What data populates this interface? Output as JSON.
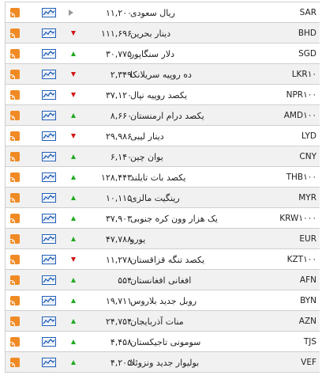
{
  "rates": [
    {
      "code": "SAR",
      "name": "ریال سعودی",
      "value": "۱۱,۲۰۰",
      "trend": "flat"
    },
    {
      "code": "BHD",
      "name": "دینار بحرین",
      "value": "۱۱۱,۶۹۶",
      "trend": "down"
    },
    {
      "code": "SGD",
      "name": "دلار سنگاپور",
      "value": "۳۰,۷۷۵",
      "trend": "up"
    },
    {
      "code": "LKR۱۰",
      "name": "ده روپیه سریلانکا",
      "value": "۲,۳۴۹",
      "trend": "down"
    },
    {
      "code": "NPR۱۰۰",
      "name": "یکصد روپیه نپال",
      "value": "۳۷,۱۲۰",
      "trend": "down"
    },
    {
      "code": "AMD۱۰۰",
      "name": "یکصد درام ارمنستان",
      "value": "۸,۶۶۰",
      "trend": "up"
    },
    {
      "code": "LYD",
      "name": "دینار لیبی",
      "value": "۲۹,۹۸۶",
      "trend": "down"
    },
    {
      "code": "CNY",
      "name": "یوان چین",
      "value": "۶,۱۴۰",
      "trend": "up"
    },
    {
      "code": "THB۱۰۰",
      "name": "یکصد بات تایلند",
      "value": "۱۲۸,۴۴۳",
      "trend": "up"
    },
    {
      "code": "MYR",
      "name": "رینگیت مالزی",
      "value": "۱۰,۱۱۵",
      "trend": "up"
    },
    {
      "code": "KRW۱۰۰۰",
      "name": "یک هزار وون کره جنوبی",
      "value": "۳۷,۹۰۳",
      "trend": "up"
    },
    {
      "code": "EUR",
      "name": "یورو",
      "value": "۴۷,۷۸۸",
      "trend": "up"
    },
    {
      "code": "KZT۱۰۰",
      "name": "یکصد تنگه قزاقستان",
      "value": "۱۱,۲۷۸",
      "trend": "down"
    },
    {
      "code": "AFN",
      "name": "افغانی افغانستان",
      "value": "۵۵۴",
      "trend": "up"
    },
    {
      "code": "BYN",
      "name": "روبل جدید بلاروس",
      "value": "۱۹,۷۱۱",
      "trend": "up"
    },
    {
      "code": "AZN",
      "name": "منات آذربایجان",
      "value": "۲۴,۷۵۴",
      "trend": "up"
    },
    {
      "code": "TJS",
      "name": "سومونی تاجیکستان",
      "value": "۴,۴۵۸",
      "trend": "up"
    },
    {
      "code": "VEF",
      "name": "بولیوار جدید ونزوئلا",
      "value": "۴,۲۰۵",
      "trend": "up"
    }
  ],
  "colors": {
    "up": "#1faa1f",
    "down": "#d01515",
    "flat": "#9a9a9a",
    "rss": "#f08a24",
    "chart": "#1e5db5"
  },
  "icons": {
    "rss": "rss-icon",
    "chart": "chart-icon",
    "up": "arrow-up-icon",
    "down": "arrow-down-icon",
    "flat": "arrow-right-icon"
  }
}
